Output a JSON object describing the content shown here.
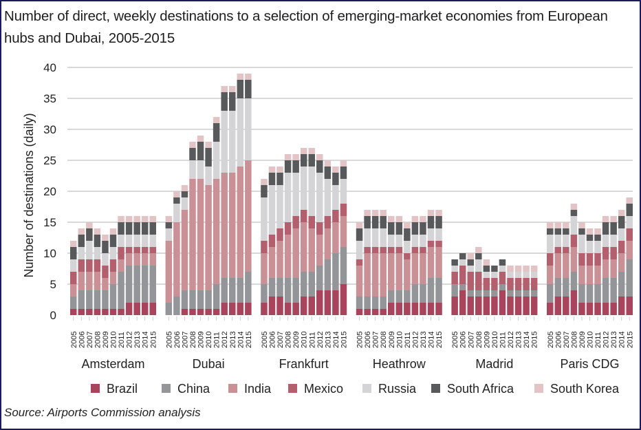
{
  "chart_data": {
    "type": "bar",
    "stacked": true,
    "title": "Number of direct, weekly destinations to a selection of emerging-market economies from European hubs and Dubai, 2005-2015",
    "xlabel": "",
    "ylabel": "Number of destinations (daily)",
    "ylim": [
      0,
      40
    ],
    "yticks": [
      0,
      5,
      10,
      15,
      20,
      25,
      30,
      35,
      40
    ],
    "grid": true,
    "legend_position": "bottom",
    "years": [
      "2005",
      "2006",
      "2007",
      "2008",
      "2009",
      "2010",
      "2011",
      "2012",
      "2013",
      "2014",
      "2015"
    ],
    "series_names": [
      "Brazil",
      "China",
      "India",
      "Mexico",
      "Russia",
      "South Africa",
      "South Korea"
    ],
    "colors": {
      "Brazil": "#a8445c",
      "China": "#939598",
      "India": "#c99096",
      "Mexico": "#b35f6e",
      "Russia": "#d4d4d6",
      "South Africa": "#58595b",
      "South Korea": "#e2c4c6"
    },
    "groups": [
      {
        "name": "Amsterdam",
        "series": {
          "Brazil": [
            1,
            1,
            1,
            1,
            1,
            1,
            1,
            2,
            2,
            2,
            2
          ],
          "China": [
            2,
            3,
            3,
            3,
            3,
            4,
            6,
            6,
            6,
            6,
            6
          ],
          "India": [
            2,
            3,
            3,
            3,
            2,
            2,
            2,
            2,
            2,
            2,
            2
          ],
          "Mexico": [
            2,
            2,
            2,
            2,
            2,
            2,
            2,
            1,
            1,
            1,
            1
          ],
          "Russia": [
            2,
            2,
            3,
            2,
            2,
            2,
            2,
            2,
            2,
            2,
            2
          ],
          "South Africa": [
            2,
            2,
            2,
            2,
            2,
            2,
            2,
            2,
            2,
            2,
            2
          ],
          "South Korea": [
            1,
            1,
            1,
            1,
            1,
            1,
            1,
            1,
            1,
            1,
            1
          ]
        }
      },
      {
        "name": "Dubai",
        "series": {
          "Brazil": [
            0,
            0,
            1,
            1,
            1,
            1,
            1,
            2,
            2,
            2,
            2
          ],
          "China": [
            2,
            3,
            3,
            3,
            3,
            3,
            4,
            4,
            4,
            4,
            5
          ],
          "India": [
            10,
            12,
            13,
            18,
            18,
            17,
            17,
            17,
            17,
            18,
            18
          ],
          "Mexico": [
            0,
            0,
            0,
            0,
            0,
            0,
            0,
            0,
            0,
            0,
            0
          ],
          "Russia": [
            2,
            3,
            2,
            3,
            3,
            3,
            6,
            10,
            10,
            11,
            10
          ],
          "South Africa": [
            1,
            1,
            1,
            2,
            3,
            3,
            3,
            3,
            3,
            3,
            3
          ],
          "South Korea": [
            1,
            1,
            1,
            1,
            1,
            1,
            1,
            1,
            1,
            1,
            1
          ]
        }
      },
      {
        "name": "Frankfurt",
        "series": {
          "Brazil": [
            2,
            3,
            3,
            2,
            2,
            3,
            3,
            4,
            4,
            4,
            5
          ],
          "China": [
            3,
            3,
            3,
            4,
            4,
            4,
            4,
            4,
            5,
            6,
            6
          ],
          "India": [
            5,
            5,
            6,
            7,
            8,
            8,
            7,
            5,
            5,
            5,
            5
          ],
          "Mexico": [
            2,
            2,
            2,
            2,
            2,
            2,
            2,
            2,
            2,
            2,
            2
          ],
          "Russia": [
            7,
            8,
            7,
            8,
            7,
            7,
            8,
            8,
            6,
            4,
            4
          ],
          "South Africa": [
            2,
            2,
            2,
            2,
            2,
            2,
            2,
            2,
            2,
            2,
            2
          ],
          "South Korea": [
            1,
            1,
            1,
            1,
            1,
            1,
            1,
            1,
            1,
            1,
            1
          ]
        }
      },
      {
        "name": "Heathrow",
        "series": {
          "Brazil": [
            1,
            1,
            1,
            1,
            2,
            2,
            2,
            2,
            2,
            2,
            2
          ],
          "China": [
            2,
            2,
            2,
            2,
            2,
            2,
            2,
            3,
            3,
            4,
            4
          ],
          "India": [
            5,
            7,
            7,
            7,
            6,
            6,
            5,
            5,
            5,
            5,
            5
          ],
          "Mexico": [
            1,
            1,
            1,
            1,
            1,
            1,
            1,
            1,
            1,
            1,
            1
          ],
          "Russia": [
            3,
            3,
            3,
            3,
            2,
            2,
            2,
            2,
            2,
            2,
            2
          ],
          "South Africa": [
            2,
            2,
            2,
            2,
            2,
            2,
            2,
            2,
            2,
            2,
            2
          ],
          "South Korea": [
            1,
            1,
            1,
            1,
            1,
            1,
            1,
            1,
            1,
            1,
            1
          ]
        }
      },
      {
        "name": "Madrid",
        "series": {
          "Brazil": [
            3,
            4,
            3,
            3,
            3,
            3,
            4,
            3,
            3,
            3,
            3
          ],
          "China": [
            2,
            1,
            1,
            1,
            1,
            1,
            1,
            1,
            1,
            1,
            1
          ],
          "India": [
            0,
            0,
            0,
            0,
            0,
            0,
            0,
            0,
            0,
            0,
            0
          ],
          "Mexico": [
            2,
            3,
            3,
            3,
            2,
            2,
            2,
            2,
            2,
            2,
            2
          ],
          "Russia": [
            1,
            1,
            1,
            2,
            1,
            1,
            1,
            1,
            1,
            1,
            1
          ],
          "South Africa": [
            1,
            1,
            1,
            1,
            1,
            1,
            1,
            0,
            0,
            0,
            0
          ],
          "South Korea": [
            0,
            0,
            1,
            1,
            1,
            0,
            0,
            1,
            1,
            1,
            1
          ]
        }
      },
      {
        "name": "Paris CDG",
        "series": {
          "Brazil": [
            2,
            3,
            3,
            4,
            2,
            2,
            2,
            2,
            2,
            3,
            3
          ],
          "China": [
            3,
            3,
            3,
            3,
            3,
            3,
            3,
            4,
            4,
            4,
            6
          ],
          "India": [
            3,
            4,
            4,
            4,
            3,
            3,
            3,
            3,
            3,
            3,
            3
          ],
          "Mexico": [
            2,
            1,
            1,
            2,
            2,
            2,
            2,
            2,
            2,
            2,
            2
          ],
          "Russia": [
            3,
            2,
            2,
            3,
            3,
            2,
            2,
            2,
            2,
            2,
            2
          ],
          "South Africa": [
            1,
            1,
            1,
            1,
            1,
            1,
            1,
            2,
            2,
            2,
            2
          ],
          "South Korea": [
            1,
            1,
            1,
            1,
            1,
            1,
            1,
            1,
            1,
            1,
            1
          ]
        }
      }
    ]
  },
  "source": "Source: Airports Commission analysis"
}
